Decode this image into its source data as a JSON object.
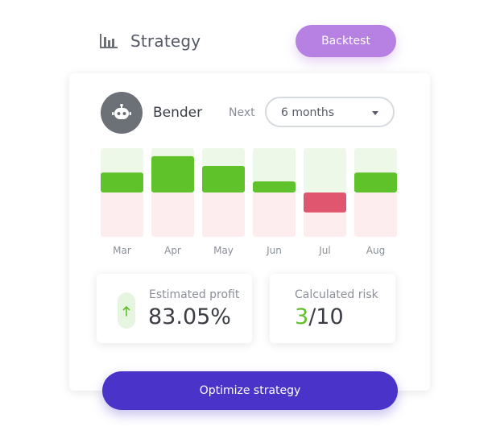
{
  "header": {
    "title": "Strategy",
    "icon": "bar-chart-icon",
    "backtest_label": "Backtest"
  },
  "bot": {
    "name": "Bender",
    "avatar_icon": "robot-icon"
  },
  "period": {
    "label": "Next",
    "selected": "6 months"
  },
  "chart_data": {
    "type": "bar",
    "categories": [
      "Mar",
      "Apr",
      "May",
      "Jun",
      "Jul",
      "Aug"
    ],
    "values": [
      0.45,
      0.82,
      0.6,
      0.25,
      -0.45,
      0.45
    ],
    "ylim": [
      -1,
      1
    ],
    "positive_color": "#5fc22a",
    "negative_color": "#e0566f",
    "positive_bg": "#eef8e8",
    "negative_bg": "#fdedef"
  },
  "profit": {
    "label": "Estimated profit",
    "value": "83.05%",
    "icon": "arrow-up-icon"
  },
  "risk": {
    "label": "Calculated risk",
    "value": "3",
    "max": "/10"
  },
  "actions": {
    "optimize_label": "Optimize strategy"
  }
}
